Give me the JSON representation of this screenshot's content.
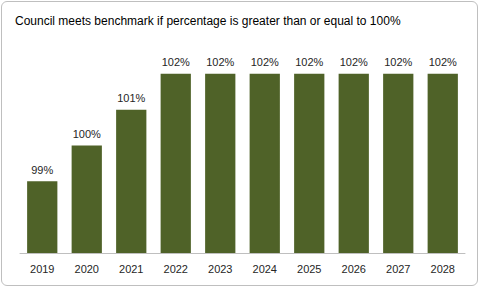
{
  "chart_data": {
    "type": "bar",
    "title": "Council meets benchmark if percentage is greater than or equal to 100%",
    "categories": [
      "2019",
      "2020",
      "2021",
      "2022",
      "2023",
      "2024",
      "2025",
      "2026",
      "2027",
      "2028"
    ],
    "values": [
      99,
      100,
      101,
      102,
      102,
      102,
      102,
      102,
      102,
      102
    ],
    "value_labels": [
      "99%",
      "100%",
      "101%",
      "102%",
      "102%",
      "102%",
      "102%",
      "102%",
      "102%",
      "102%"
    ],
    "color": "#4f6228",
    "ylim": [
      97,
      103
    ],
    "yticks": [
      97,
      98,
      99,
      100,
      101,
      102,
      103
    ],
    "grid": false,
    "tick_labels": "x",
    "data_labels": true
  }
}
